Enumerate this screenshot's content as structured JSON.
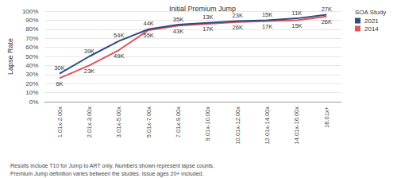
{
  "chart_data": {
    "type": "line",
    "title": "Initial Premium Jump",
    "y_label": "Lapse Rate",
    "legend_title": "SOA Study",
    "notes": [
      "Results include T10 for Jump to ART only. Numbers shown represent lapse counts.",
      "Premium Jump definition varies between the studies. Issue ages 20+ included."
    ],
    "categories": [
      "1.01x-2.00x",
      "2.01x-3.00x",
      "3.01x-5.00x",
      "5.01x-7.00x",
      "7.01x-9.00x",
      "9.01x-10.00x",
      "10.01x-12.00x",
      "12.01x-14.00x",
      "14.01x-16.00x",
      "16.01x+"
    ],
    "series": [
      {
        "name": "2014",
        "color": "#e0535c",
        "values": [
          26,
          40,
          57,
          79,
          84,
          86,
          88,
          89,
          90,
          94
        ],
        "lapse_counts": [
          "6K",
          "23K",
          "49K",
          "55K",
          "43K",
          "17K",
          "26K",
          "17K",
          "15K",
          "26K"
        ]
      },
      {
        "name": "2021",
        "color": "#2a4d7f",
        "values": [
          31,
          50,
          67,
          80,
          85,
          87,
          89,
          90,
          92,
          96
        ],
        "lapse_counts": [
          "30K",
          "39K",
          "54K",
          "44K",
          "35K",
          "13K",
          "23K",
          "15K",
          "11K",
          "27K"
        ]
      }
    ],
    "ylim": [
      0,
      100
    ],
    "yticks": [
      {
        "value": 0,
        "label": "0%"
      },
      {
        "value": 10,
        "label": "10%"
      },
      {
        "value": 20,
        "label": "20%"
      },
      {
        "value": 30,
        "label": "30%"
      },
      {
        "value": 40,
        "label": "40%"
      },
      {
        "value": 50,
        "label": "50%"
      },
      {
        "value": 60,
        "label": "60%"
      },
      {
        "value": 70,
        "label": "70%"
      },
      {
        "value": 80,
        "label": "80%"
      },
      {
        "value": 90,
        "label": "90%"
      },
      {
        "value": 100,
        "label": "100%"
      }
    ],
    "grid": true,
    "legend": "upper right"
  }
}
